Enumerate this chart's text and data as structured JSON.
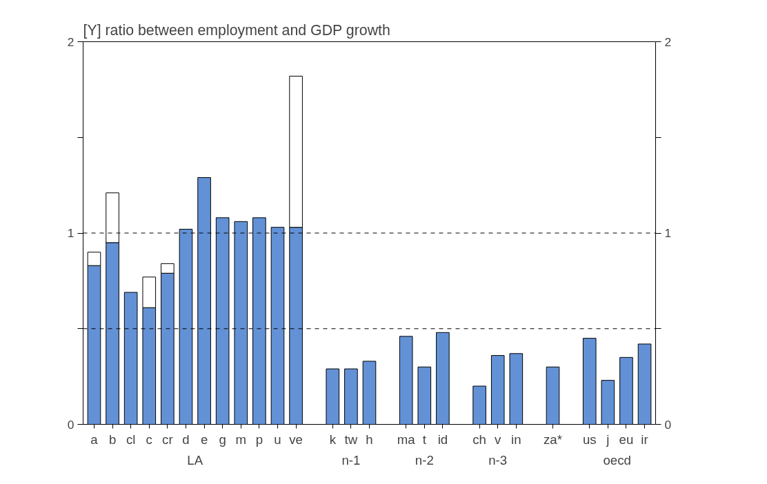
{
  "chart_data": {
    "type": "bar",
    "title": "[Y] ratio between employment and GDP growth",
    "categories": [
      "a",
      "b",
      "cl",
      "c",
      "cr",
      "d",
      "e",
      "g",
      "m",
      "p",
      "u",
      "ve",
      null,
      "k",
      "tw",
      "h",
      null,
      "ma",
      "t",
      "id",
      null,
      "ch",
      "v",
      "in",
      null,
      "za*",
      null,
      "us",
      "j",
      "eu",
      "ir"
    ],
    "stacked": true,
    "series": [
      {
        "color": "#6391d6",
        "values": [
          0.83,
          0.95,
          0.69,
          0.61,
          0.79,
          1.02,
          1.29,
          1.08,
          1.06,
          1.08,
          1.03,
          1.03,
          null,
          0.29,
          0.29,
          0.33,
          null,
          0.46,
          0.3,
          0.48,
          null,
          0.2,
          0.36,
          0.37,
          null,
          0.3,
          null,
          0.45,
          0.23,
          0.35,
          0.42
        ]
      },
      {
        "color": "#ffffff",
        "values": [
          0.07,
          0.26,
          null,
          0.16,
          0.05,
          null,
          null,
          null,
          null,
          null,
          null,
          0.79,
          null,
          null,
          null,
          null,
          null,
          null,
          null,
          null,
          null,
          null,
          null,
          null,
          null,
          null,
          null,
          null,
          null,
          null,
          null
        ]
      }
    ],
    "ylim": [
      0,
      2
    ],
    "yticks": [
      0,
      {
        "value": 0.5,
        "label": null
      },
      1,
      {
        "value": 1.5,
        "label": null
      },
      2
    ],
    "y2lim": [
      0,
      2
    ],
    "y2ticks": [
      0,
      {
        "value": 0.5,
        "label": null
      },
      1,
      {
        "value": 1.5,
        "label": null
      },
      2
    ],
    "grid": false,
    "ref_lines": [
      {
        "axis": "y",
        "value": 1,
        "label": null,
        "color": "#000000",
        "line_style": "dashed"
      },
      {
        "axis": "y",
        "value": 0.5,
        "label": null,
        "color": "#000000",
        "line_style": "dashed"
      }
    ],
    "annotations": [
      "LA",
      "n-1",
      "n-2",
      "n-3",
      null,
      "oecd"
    ]
  }
}
